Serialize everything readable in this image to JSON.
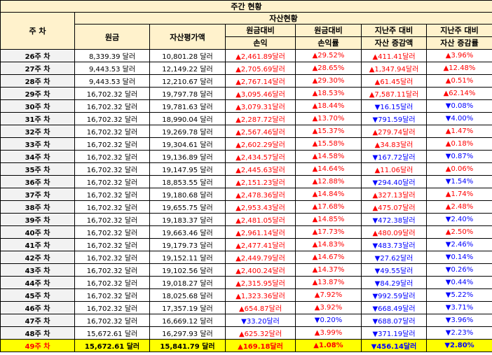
{
  "title": "주간 현황",
  "headers": {
    "week": "주 차",
    "group": "자산현황",
    "principal": "원금",
    "valuation": "자산평가액",
    "pl_amount": [
      "원금대비",
      "손익"
    ],
    "pl_rate": [
      "원금대비",
      "손익률"
    ],
    "chg_amount": [
      "지난주 대비",
      "자산 증감액"
    ],
    "chg_rate": [
      "지난주 대비",
      "자산 증감률"
    ]
  },
  "colors": {
    "header_bg": "#FFF2CC",
    "week_bg": "#F2F2F2",
    "highlight_bg": "#FFFF00",
    "up": "#FF0000",
    "down": "#0000FF"
  },
  "rows": [
    {
      "week": "26주 차",
      "principal": "8,339.39 달러",
      "valuation": "10,801.28 달러",
      "pl": "▲2,461.89달러",
      "pl_dir": "up",
      "plr": "▲29.52%",
      "plr_dir": "up",
      "chg": "▲411.41달러",
      "chg_dir": "up",
      "chgr": "▲3.96%",
      "chgr_dir": "up"
    },
    {
      "week": "27주 차",
      "principal": "9,443.53 달러",
      "valuation": "12,149.22 달러",
      "pl": "▲2,705.69달러",
      "pl_dir": "up",
      "plr": "▲28.65%",
      "plr_dir": "up",
      "chg": "▲1,347.94달러",
      "chg_dir": "up",
      "chgr": "▲12.48%",
      "chgr_dir": "up"
    },
    {
      "week": "28주 차",
      "principal": "9,443.53 달러",
      "valuation": "12,210.67 달러",
      "pl": "▲2,767.14달러",
      "pl_dir": "up",
      "plr": "▲29.30%",
      "plr_dir": "up",
      "chg": "▲61.45달러",
      "chg_dir": "up",
      "chgr": "▲0.51%",
      "chgr_dir": "up"
    },
    {
      "week": "29주 차",
      "principal": "16,702.32 달러",
      "valuation": "19,797.78 달러",
      "pl": "▲3,095.46달러",
      "pl_dir": "up",
      "plr": "▲18.53%",
      "plr_dir": "up",
      "chg": "▲7,587.11달러",
      "chg_dir": "up",
      "chgr": "▲62.14%",
      "chgr_dir": "up"
    },
    {
      "week": "30주 차",
      "principal": "16,702.32 달러",
      "valuation": "19,781.63 달러",
      "pl": "▲3,079.31달러",
      "pl_dir": "up",
      "plr": "▲18.44%",
      "plr_dir": "up",
      "chg": "▼16.15달러",
      "chg_dir": "down",
      "chgr": "▼0.08%",
      "chgr_dir": "down"
    },
    {
      "week": "31주 차",
      "principal": "16,702.32 달러",
      "valuation": "18,990.04 달러",
      "pl": "▲2,287.72달러",
      "pl_dir": "up",
      "plr": "▲13.70%",
      "plr_dir": "up",
      "chg": "▼791.59달러",
      "chg_dir": "down",
      "chgr": "▼4.00%",
      "chgr_dir": "down"
    },
    {
      "week": "32주 차",
      "principal": "16,702.32 달러",
      "valuation": "19,269.78 달러",
      "pl": "▲2,567.46달러",
      "pl_dir": "up",
      "plr": "▲15.37%",
      "plr_dir": "up",
      "chg": "▲279.74달러",
      "chg_dir": "up",
      "chgr": "▲1.47%",
      "chgr_dir": "up"
    },
    {
      "week": "33주 차",
      "principal": "16,702.32 달러",
      "valuation": "19,304.61 달러",
      "pl": "▲2,602.29달러",
      "pl_dir": "up",
      "plr": "▲15.58%",
      "plr_dir": "up",
      "chg": "▲34.83달러",
      "chg_dir": "up",
      "chgr": "▲0.18%",
      "chgr_dir": "up"
    },
    {
      "week": "34주 차",
      "principal": "16,702.32 달러",
      "valuation": "19,136.89 달러",
      "pl": "▲2,434.57달러",
      "pl_dir": "up",
      "plr": "▲14.58%",
      "plr_dir": "up",
      "chg": "▼167.72달러",
      "chg_dir": "down",
      "chgr": "▼0.87%",
      "chgr_dir": "down"
    },
    {
      "week": "35주 차",
      "principal": "16,702.32 달러",
      "valuation": "19,147.95 달러",
      "pl": "▲2,445.63달러",
      "pl_dir": "up",
      "plr": "▲14.64%",
      "plr_dir": "up",
      "chg": "▲11.06달러",
      "chg_dir": "up",
      "chgr": "▲0.06%",
      "chgr_dir": "up"
    },
    {
      "week": "36주 차",
      "principal": "16,702.32 달러",
      "valuation": "18,853.55 달러",
      "pl": "▲2,151.23달러",
      "pl_dir": "up",
      "plr": "▲12.88%",
      "plr_dir": "up",
      "chg": "▼294.40달러",
      "chg_dir": "down",
      "chgr": "▼1.54%",
      "chgr_dir": "down"
    },
    {
      "week": "37주 차",
      "principal": "16,702.32 달러",
      "valuation": "19,180.68 달러",
      "pl": "▲2,478.36달러",
      "pl_dir": "up",
      "plr": "▲14.84%",
      "plr_dir": "up",
      "chg": "▲327.13달러",
      "chg_dir": "up",
      "chgr": "▲1.74%",
      "chgr_dir": "up"
    },
    {
      "week": "38주 차",
      "principal": "16,702.32 달러",
      "valuation": "19,655.75 달러",
      "pl": "▲2,953.43달러",
      "pl_dir": "up",
      "plr": "▲17.68%",
      "plr_dir": "up",
      "chg": "▲475.07달러",
      "chg_dir": "up",
      "chgr": "▲2.48%",
      "chgr_dir": "up"
    },
    {
      "week": "39주 차",
      "principal": "16,702.32 달러",
      "valuation": "19,183.37 달러",
      "pl": "▲2,481.05달러",
      "pl_dir": "up",
      "plr": "▲14.85%",
      "plr_dir": "up",
      "chg": "▼472.38달러",
      "chg_dir": "down",
      "chgr": "▼2.40%",
      "chgr_dir": "down"
    },
    {
      "week": "40주 차",
      "principal": "16,702.32 달러",
      "valuation": "19,663.46 달러",
      "pl": "▲2,961.14달러",
      "pl_dir": "up",
      "plr": "▲17.73%",
      "plr_dir": "up",
      "chg": "▲480.09달러",
      "chg_dir": "up",
      "chgr": "▲2.50%",
      "chgr_dir": "up"
    },
    {
      "week": "41주 차",
      "principal": "16,702.32 달러",
      "valuation": "19,179.73 달러",
      "pl": "▲2,477.41달러",
      "pl_dir": "up",
      "plr": "▲14.83%",
      "plr_dir": "up",
      "chg": "▼483.73달러",
      "chg_dir": "down",
      "chgr": "▼2.46%",
      "chgr_dir": "down"
    },
    {
      "week": "42주 차",
      "principal": "16,702.32 달러",
      "valuation": "19,152.11 달러",
      "pl": "▲2,449.79달러",
      "pl_dir": "up",
      "plr": "▲14.67%",
      "plr_dir": "up",
      "chg": "▼27.62달러",
      "chg_dir": "down",
      "chgr": "▼0.14%",
      "chgr_dir": "down"
    },
    {
      "week": "43주 차",
      "principal": "16,702.32 달러",
      "valuation": "19,102.56 달러",
      "pl": "▲2,400.24달러",
      "pl_dir": "up",
      "plr": "▲14.37%",
      "plr_dir": "up",
      "chg": "▼49.55달러",
      "chg_dir": "down",
      "chgr": "▼0.26%",
      "chgr_dir": "down"
    },
    {
      "week": "44주 차",
      "principal": "16,702.32 달러",
      "valuation": "19,018.27 달러",
      "pl": "▲2,315.95달러",
      "pl_dir": "up",
      "plr": "▲13.87%",
      "plr_dir": "up",
      "chg": "▼84.29달러",
      "chg_dir": "down",
      "chgr": "▼0.44%",
      "chgr_dir": "down"
    },
    {
      "week": "45주 차",
      "principal": "16,702.32 달러",
      "valuation": "18,025.68 달러",
      "pl": "▲1,323.36달러",
      "pl_dir": "up",
      "plr": "▲7.92%",
      "plr_dir": "up",
      "chg": "▼992.59달러",
      "chg_dir": "down",
      "chgr": "▼5.22%",
      "chgr_dir": "down"
    },
    {
      "week": "46주 차",
      "principal": "16,702.32 달러",
      "valuation": "17,357.19 달러",
      "pl": "▲654.87달러",
      "pl_dir": "up",
      "plr": "▲3.92%",
      "plr_dir": "up",
      "chg": "▼668.49달러",
      "chg_dir": "down",
      "chgr": "▼3.71%",
      "chgr_dir": "down"
    },
    {
      "week": "47주 차",
      "principal": "16,702.32 달러",
      "valuation": "16,669.12 달러",
      "pl": "▼33.20달러",
      "pl_dir": "down",
      "plr": "▼0.20%",
      "plr_dir": "down",
      "chg": "▼688.07달러",
      "chg_dir": "down",
      "chgr": "▼3.96%",
      "chgr_dir": "down"
    },
    {
      "week": "48주 차",
      "principal": "15,672.61 달러",
      "valuation": "16,297.93 달러",
      "pl": "▲625.32달러",
      "pl_dir": "up",
      "plr": "▲3.99%",
      "plr_dir": "up",
      "chg": "▼371.19달러",
      "chg_dir": "down",
      "chgr": "▼2.23%",
      "chgr_dir": "down"
    },
    {
      "week": "49주 차",
      "principal": "15,672.61 달러",
      "valuation": "15,841.79 달러",
      "pl": "▲169.18달러",
      "pl_dir": "up",
      "plr": "▲1.08%",
      "plr_dir": "up",
      "chg": "▼456.14달러",
      "chg_dir": "down",
      "chgr": "▼2.80%",
      "chgr_dir": "down",
      "highlight": true
    }
  ]
}
